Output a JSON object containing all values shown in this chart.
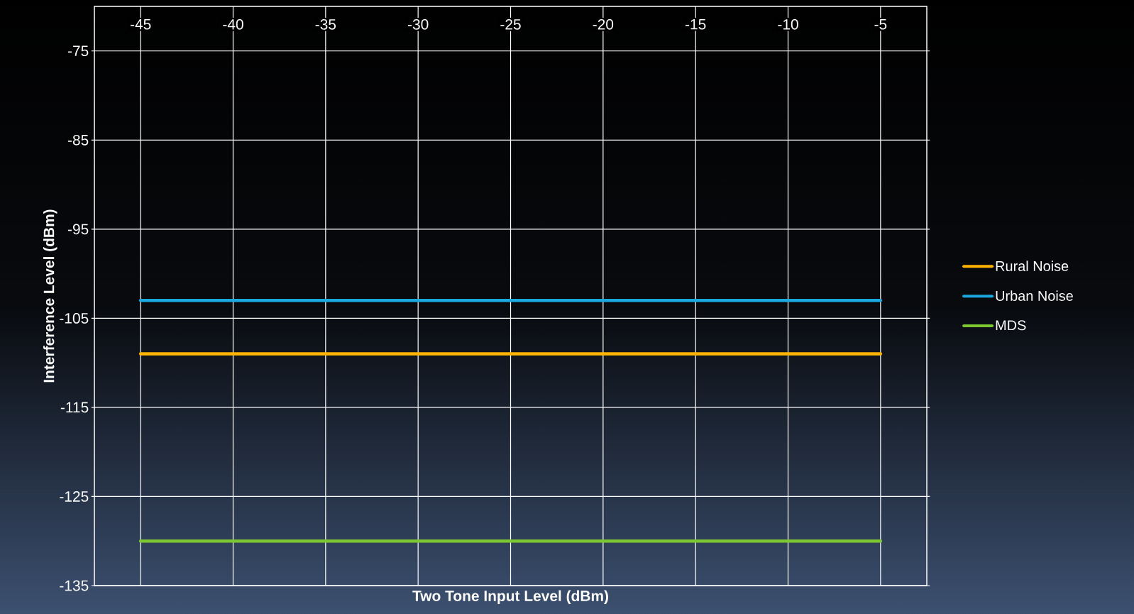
{
  "chart_data": {
    "type": "line",
    "xlabel": "Two Tone Input Level (dBm)",
    "ylabel": "Interference Level (dBm)",
    "x": [
      -45,
      -5
    ],
    "series": [
      {
        "name": "Rural Noise",
        "color": "#ffb400",
        "values": [
          -109,
          -109
        ]
      },
      {
        "name": "Urban Noise",
        "color": "#1ba8dc",
        "values": [
          -103,
          -103
        ]
      },
      {
        "name": "MDS",
        "color": "#7dc832",
        "values": [
          -130,
          -130
        ]
      }
    ],
    "xlim": [
      -47.5,
      -2.5
    ],
    "ylim": [
      -135,
      -70
    ],
    "xticks": [
      -45,
      -40,
      -35,
      -30,
      -25,
      -20,
      -15,
      -10,
      -5
    ],
    "yticks": [
      -75,
      -85,
      -95,
      -105,
      -115,
      -125,
      -135
    ],
    "grid": true,
    "legend": "right",
    "marker": "none",
    "line_style": "solid"
  }
}
